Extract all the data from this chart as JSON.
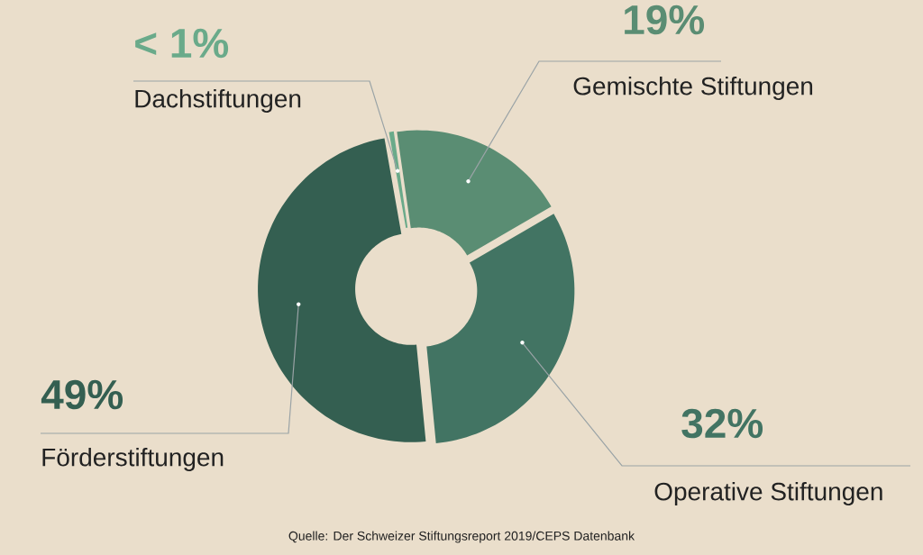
{
  "chart_data": {
    "type": "donut",
    "categories": [
      "Dachstiftungen",
      "Gemischte Stiftungen",
      "Operative Stiftungen",
      "Förderstiftungen"
    ],
    "values": [
      0.5,
      19,
      32,
      49
    ],
    "value_labels": [
      "< 1%",
      "19%",
      "32%",
      "49%"
    ],
    "colors": [
      "#6aaa8a",
      "#5a8d73",
      "#427463",
      "#345f51"
    ],
    "annotations": [
      "Quelle: Der Schweizer Stiftungsreport 2019/CEPS Datenbank"
    ]
  }
}
